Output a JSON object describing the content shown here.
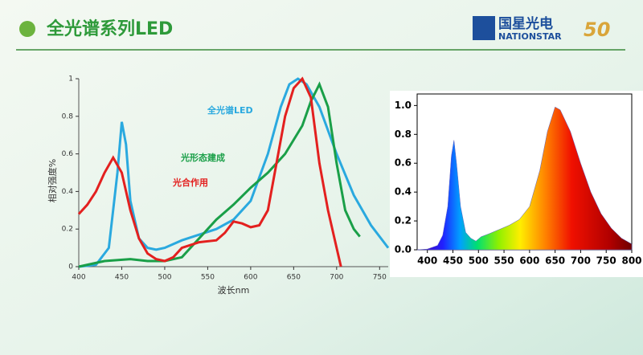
{
  "header": {
    "title": "全光谱系列LED",
    "logo_cn": "国星光电",
    "logo_en": "NATIONSTAR",
    "logo_num": "50"
  },
  "chart_data": [
    {
      "type": "line",
      "xlabel": "波长nm",
      "ylabel": "相对强度%",
      "xlim": [
        400,
        760
      ],
      "xticks": [
        400,
        450,
        500,
        550,
        600,
        650,
        700,
        750
      ],
      "ylim": [
        0,
        1
      ],
      "yticks": [
        0,
        0.2,
        0.4,
        0.6,
        0.8,
        1
      ],
      "series": [
        {
          "name": "全光谱LED",
          "color": "#2aa9df",
          "x": [
            400,
            420,
            435,
            445,
            450,
            455,
            460,
            470,
            480,
            490,
            500,
            520,
            540,
            560,
            580,
            600,
            620,
            635,
            645,
            655,
            665,
            680,
            700,
            720,
            740,
            760
          ],
          "values": [
            0,
            0.01,
            0.1,
            0.5,
            0.77,
            0.65,
            0.35,
            0.15,
            0.1,
            0.09,
            0.1,
            0.14,
            0.17,
            0.2,
            0.25,
            0.35,
            0.6,
            0.85,
            0.97,
            1,
            0.97,
            0.85,
            0.6,
            0.38,
            0.22,
            0.1
          ]
        },
        {
          "name": "光形态建成",
          "color": "#1a9f48",
          "x": [
            400,
            430,
            460,
            480,
            500,
            520,
            540,
            560,
            580,
            600,
            620,
            640,
            660,
            670,
            680,
            690,
            700,
            710,
            720,
            727
          ],
          "values": [
            0,
            0.03,
            0.04,
            0.03,
            0.03,
            0.05,
            0.15,
            0.25,
            0.33,
            0.42,
            0.5,
            0.6,
            0.75,
            0.88,
            0.97,
            0.85,
            0.55,
            0.3,
            0.2,
            0.16
          ]
        },
        {
          "name": "光合作用",
          "color": "#e3201f",
          "x": [
            400,
            410,
            420,
            430,
            440,
            450,
            460,
            470,
            480,
            490,
            500,
            510,
            520,
            540,
            560,
            570,
            580,
            590,
            600,
            610,
            620,
            630,
            640,
            650,
            660,
            670,
            680,
            690,
            700,
            705
          ],
          "values": [
            0.28,
            0.33,
            0.4,
            0.5,
            0.58,
            0.5,
            0.3,
            0.15,
            0.07,
            0.04,
            0.03,
            0.05,
            0.1,
            0.13,
            0.14,
            0.18,
            0.24,
            0.23,
            0.21,
            0.22,
            0.3,
            0.55,
            0.8,
            0.95,
            1,
            0.9,
            0.55,
            0.3,
            0.1,
            0
          ]
        }
      ]
    },
    {
      "type": "area",
      "xlim": [
        380,
        800
      ],
      "xticks": [
        400,
        450,
        500,
        550,
        600,
        650,
        700,
        750,
        800
      ],
      "ylim": [
        0,
        1.08
      ],
      "yticks": [
        {
          "value": 0,
          "label": "0.0"
        },
        {
          "value": 0.2,
          "label": "0.2"
        },
        {
          "value": 0.4,
          "label": "0.4"
        },
        {
          "value": 0.6,
          "label": "0.6"
        },
        {
          "value": 0.8,
          "label": "0.8"
        },
        {
          "value": 1,
          "label": "1.0"
        }
      ],
      "x": [
        380,
        400,
        420,
        430,
        440,
        447,
        452,
        457,
        465,
        475,
        485,
        495,
        505,
        520,
        540,
        560,
        580,
        600,
        620,
        635,
        650,
        660,
        680,
        700,
        720,
        740,
        760,
        780,
        800
      ],
      "values": [
        0,
        0.005,
        0.03,
        0.1,
        0.3,
        0.65,
        0.76,
        0.6,
        0.3,
        0.12,
        0.08,
        0.06,
        0.09,
        0.11,
        0.14,
        0.17,
        0.21,
        0.3,
        0.55,
        0.82,
        0.99,
        0.97,
        0.82,
        0.6,
        0.4,
        0.25,
        0.15,
        0.08,
        0.04
      ]
    }
  ]
}
